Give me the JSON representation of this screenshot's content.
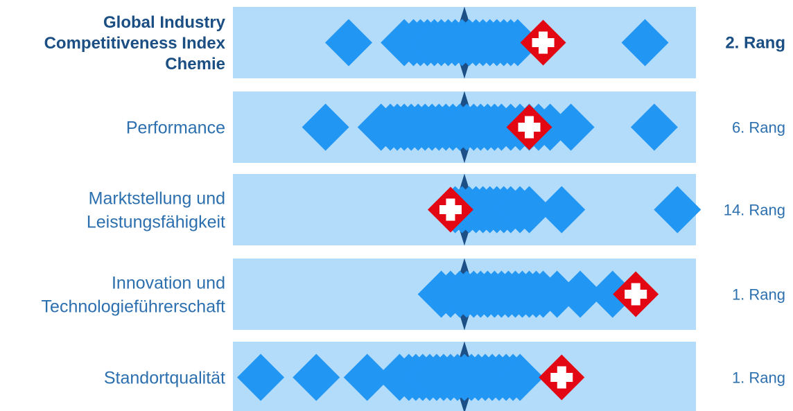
{
  "chart_data": {
    "type": "scatter",
    "title": "",
    "colors": {
      "band": "#b3dcfb",
      "diamond": "#2196f3",
      "median": "#1c4f86",
      "swiss_red": "#e30613",
      "label_bold": "#1b4f84",
      "label": "#2c6fae",
      "swiss_cross": "#ffffff"
    },
    "xlim": [
      0,
      100
    ],
    "median_marker": 50,
    "rows": [
      {
        "label_lines": [
          "Global Industry",
          "Competitiveness Index",
          "Chemie"
        ],
        "rank": "2. Rang",
        "bold": true,
        "countries": [
          25,
          37,
          39,
          40.5,
          42,
          43.5,
          45,
          46.5,
          48,
          49.5,
          51,
          52.5,
          54,
          55.5,
          57,
          58.5,
          60,
          61.5,
          89
        ],
        "switzerland": 67
      },
      {
        "label_lines": [
          "Performance"
        ],
        "rank": "6. Rang",
        "bold": false,
        "countries": [
          20,
          32,
          34,
          35.5,
          37,
          38.5,
          40,
          41.5,
          43,
          44.5,
          46,
          47.5,
          49,
          50.5,
          52,
          53.5,
          55,
          56.5,
          58,
          60,
          62,
          64,
          66,
          68.5,
          73,
          91
        ],
        "switzerland": 64
      },
      {
        "label_lines": [
          "Marktstellung und",
          "Leistungsfähigkeit"
        ],
        "rank": "14. Rang",
        "bold": false,
        "countries": [
          48,
          49.5,
          51,
          52.5,
          54,
          55.5,
          57,
          58.5,
          60,
          62,
          64,
          71,
          96
        ],
        "switzerland": 47
      },
      {
        "label_lines": [
          "Innovation und",
          "Technologieführerschaft"
        ],
        "rank": "1. Rang",
        "bold": false,
        "countries": [
          45,
          47,
          49,
          50.5,
          52,
          53.5,
          55,
          56.5,
          58,
          59.5,
          61,
          62.5,
          64,
          65.5,
          67,
          70,
          75,
          82
        ],
        "switzerland": 87
      },
      {
        "label_lines": [
          "Standortqualität"
        ],
        "rank": "1. Rang",
        "bold": false,
        "countries": [
          6,
          18,
          29,
          36,
          38,
          39.5,
          41,
          42.5,
          44,
          45.5,
          47,
          48.5,
          50,
          51.5,
          53,
          54.5,
          56,
          57.5,
          59,
          60.5,
          62
        ],
        "switzerland": 71
      }
    ]
  }
}
